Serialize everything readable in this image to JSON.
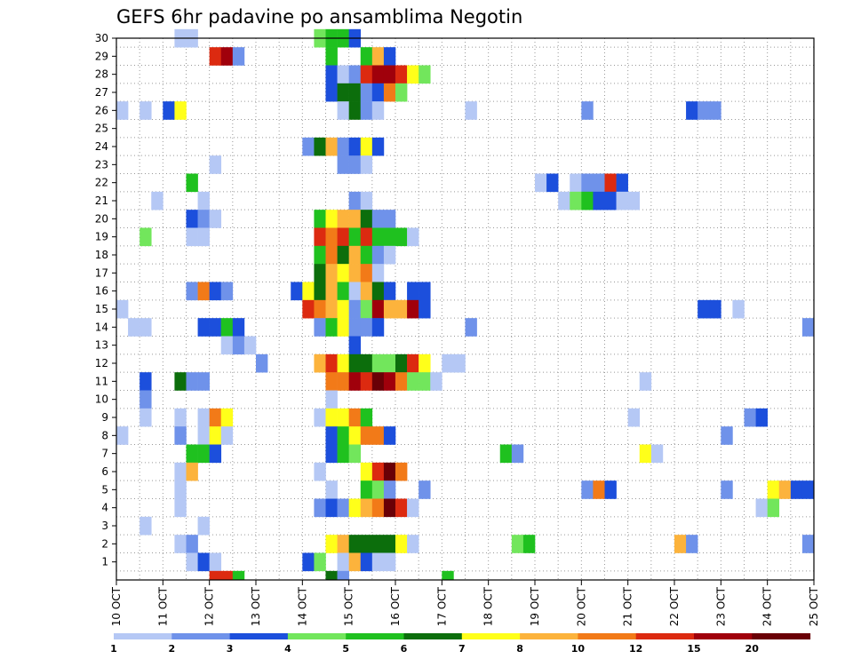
{
  "chart_data": {
    "type": "heatmap",
    "title": "GEFS 6hr padavine po ansamblima Negotin",
    "x_labels": [
      "10 OCT",
      "11 OCT",
      "12 OCT",
      "13 OCT",
      "14 OCT",
      "15 OCT",
      "16 OCT",
      "17 OCT",
      "18 OCT",
      "19 OCT",
      "20 OCT",
      "21 OCT",
      "22 OCT",
      "23 OCT",
      "24 OCT",
      "25 OCT"
    ],
    "y_labels": [
      "1",
      "2",
      "3",
      "4",
      "5",
      "6",
      "7",
      "8",
      "9",
      "10",
      "11",
      "12",
      "13",
      "14",
      "15",
      "16",
      "17",
      "18",
      "19",
      "20",
      "21",
      "22",
      "23",
      "24",
      "25",
      "26",
      "27",
      "28",
      "29",
      "30"
    ],
    "time_steps_per_day": 4,
    "members": 30,
    "colorbar": {
      "labels": [
        "1",
        "2",
        "3",
        "4",
        "5",
        "6",
        "7",
        "8",
        "10",
        "12",
        "15",
        "20"
      ],
      "colors": [
        "#b5c8f5",
        "#6f92ea",
        "#1c4fdc",
        "#72e65c",
        "#1fc11f",
        "#0c6e0c",
        "#ffff1a",
        "#fcb33c",
        "#f27a18",
        "#dc2a10",
        "#a0000b",
        "#6a0006"
      ]
    },
    "cell_levels_note": "cells: [time_step_index, member, color_level_index]",
    "cells": [
      [
        5,
        30,
        0
      ],
      [
        6,
        30,
        0
      ],
      [
        17,
        30,
        3
      ],
      [
        18,
        30,
        4
      ],
      [
        19,
        30,
        4
      ],
      [
        20,
        30,
        2
      ],
      [
        8,
        29,
        9
      ],
      [
        9,
        29,
        10
      ],
      [
        10,
        29,
        1
      ],
      [
        18,
        29,
        4
      ],
      [
        21,
        29,
        4
      ],
      [
        22,
        29,
        7
      ],
      [
        23,
        29,
        2
      ],
      [
        18,
        28,
        2
      ],
      [
        19,
        28,
        0
      ],
      [
        20,
        28,
        1
      ],
      [
        21,
        28,
        9
      ],
      [
        22,
        28,
        10
      ],
      [
        23,
        28,
        10
      ],
      [
        24,
        28,
        9
      ],
      [
        25,
        28,
        6
      ],
      [
        26,
        28,
        3
      ],
      [
        18,
        27,
        2
      ],
      [
        19,
        27,
        5
      ],
      [
        20,
        27,
        5
      ],
      [
        21,
        27,
        1
      ],
      [
        22,
        27,
        2
      ],
      [
        23,
        27,
        8
      ],
      [
        24,
        27,
        3
      ],
      [
        0,
        26,
        0
      ],
      [
        2,
        26,
        0
      ],
      [
        4,
        26,
        2
      ],
      [
        5,
        26,
        6
      ],
      [
        19,
        26,
        0
      ],
      [
        20,
        26,
        5
      ],
      [
        21,
        26,
        1
      ],
      [
        22,
        26,
        0
      ],
      [
        30,
        26,
        0
      ],
      [
        40,
        26,
        1
      ],
      [
        49,
        26,
        2
      ],
      [
        50,
        26,
        1
      ],
      [
        51,
        26,
        1
      ],
      [
        16,
        24,
        1
      ],
      [
        17,
        24,
        5
      ],
      [
        18,
        24,
        7
      ],
      [
        19,
        24,
        1
      ],
      [
        20,
        24,
        2
      ],
      [
        21,
        24,
        6
      ],
      [
        22,
        24,
        2
      ],
      [
        8,
        23,
        0
      ],
      [
        19,
        23,
        1
      ],
      [
        20,
        23,
        1
      ],
      [
        21,
        23,
        0
      ],
      [
        6,
        22,
        4
      ],
      [
        36,
        22,
        0
      ],
      [
        37,
        22,
        2
      ],
      [
        39,
        22,
        0
      ],
      [
        40,
        22,
        1
      ],
      [
        41,
        22,
        1
      ],
      [
        42,
        22,
        9
      ],
      [
        43,
        22,
        2
      ],
      [
        3,
        21,
        0
      ],
      [
        7,
        21,
        0
      ],
      [
        20,
        21,
        1
      ],
      [
        21,
        21,
        0
      ],
      [
        38,
        21,
        0
      ],
      [
        39,
        21,
        3
      ],
      [
        40,
        21,
        4
      ],
      [
        41,
        21,
        2
      ],
      [
        42,
        21,
        2
      ],
      [
        43,
        21,
        0
      ],
      [
        44,
        21,
        0
      ],
      [
        6,
        20,
        2
      ],
      [
        7,
        20,
        1
      ],
      [
        8,
        20,
        0
      ],
      [
        17,
        20,
        4
      ],
      [
        18,
        20,
        6
      ],
      [
        19,
        20,
        7
      ],
      [
        20,
        20,
        7
      ],
      [
        21,
        20,
        5
      ],
      [
        22,
        20,
        1
      ],
      [
        23,
        20,
        1
      ],
      [
        2,
        19,
        3
      ],
      [
        6,
        19,
        0
      ],
      [
        7,
        19,
        0
      ],
      [
        17,
        19,
        9
      ],
      [
        18,
        19,
        8
      ],
      [
        19,
        19,
        9
      ],
      [
        20,
        19,
        4
      ],
      [
        21,
        19,
        9
      ],
      [
        22,
        19,
        4
      ],
      [
        23,
        19,
        4
      ],
      [
        24,
        19,
        4
      ],
      [
        25,
        19,
        0
      ],
      [
        17,
        18,
        4
      ],
      [
        18,
        18,
        8
      ],
      [
        19,
        18,
        5
      ],
      [
        20,
        18,
        7
      ],
      [
        21,
        18,
        4
      ],
      [
        22,
        18,
        1
      ],
      [
        23,
        18,
        0
      ],
      [
        17,
        17,
        5
      ],
      [
        18,
        17,
        7
      ],
      [
        19,
        17,
        6
      ],
      [
        20,
        17,
        7
      ],
      [
        21,
        17,
        8
      ],
      [
        22,
        17,
        0
      ],
      [
        6,
        16,
        1
      ],
      [
        7,
        16,
        8
      ],
      [
        8,
        16,
        2
      ],
      [
        9,
        16,
        1
      ],
      [
        15,
        16,
        2
      ],
      [
        16,
        16,
        6
      ],
      [
        17,
        16,
        5
      ],
      [
        18,
        16,
        7
      ],
      [
        19,
        16,
        4
      ],
      [
        20,
        16,
        0
      ],
      [
        21,
        16,
        7
      ],
      [
        22,
        16,
        5
      ],
      [
        23,
        16,
        2
      ],
      [
        25,
        16,
        2
      ],
      [
        26,
        16,
        2
      ],
      [
        0,
        15,
        0
      ],
      [
        16,
        15,
        9
      ],
      [
        17,
        15,
        8
      ],
      [
        18,
        15,
        7
      ],
      [
        19,
        15,
        6
      ],
      [
        20,
        15,
        1
      ],
      [
        21,
        15,
        3
      ],
      [
        22,
        15,
        10
      ],
      [
        23,
        15,
        7
      ],
      [
        24,
        15,
        7
      ],
      [
        25,
        15,
        10
      ],
      [
        26,
        15,
        2
      ],
      [
        50,
        15,
        2
      ],
      [
        51,
        15,
        2
      ],
      [
        53,
        15,
        0
      ],
      [
        1,
        14,
        0
      ],
      [
        2,
        14,
        0
      ],
      [
        7,
        14,
        2
      ],
      [
        8,
        14,
        2
      ],
      [
        9,
        14,
        4
      ],
      [
        10,
        14,
        2
      ],
      [
        17,
        14,
        1
      ],
      [
        18,
        14,
        4
      ],
      [
        19,
        14,
        6
      ],
      [
        20,
        14,
        1
      ],
      [
        21,
        14,
        1
      ],
      [
        22,
        14,
        2
      ],
      [
        30,
        14,
        1
      ],
      [
        59,
        14,
        1
      ],
      [
        9,
        13,
        0
      ],
      [
        10,
        13,
        1
      ],
      [
        11,
        13,
        0
      ],
      [
        20,
        13,
        2
      ],
      [
        12,
        12,
        1
      ],
      [
        17,
        12,
        7
      ],
      [
        18,
        12,
        9
      ],
      [
        19,
        12,
        6
      ],
      [
        20,
        12,
        5
      ],
      [
        21,
        12,
        5
      ],
      [
        22,
        12,
        3
      ],
      [
        23,
        12,
        3
      ],
      [
        24,
        12,
        5
      ],
      [
        25,
        12,
        9
      ],
      [
        26,
        12,
        6
      ],
      [
        28,
        12,
        0
      ],
      [
        29,
        12,
        0
      ],
      [
        2,
        11,
        2
      ],
      [
        5,
        11,
        5
      ],
      [
        6,
        11,
        1
      ],
      [
        7,
        11,
        1
      ],
      [
        18,
        11,
        8
      ],
      [
        19,
        11,
        8
      ],
      [
        20,
        11,
        10
      ],
      [
        21,
        11,
        9
      ],
      [
        22,
        11,
        11
      ],
      [
        23,
        11,
        10
      ],
      [
        24,
        11,
        8
      ],
      [
        25,
        11,
        3
      ],
      [
        26,
        11,
        3
      ],
      [
        27,
        11,
        0
      ],
      [
        45,
        11,
        0
      ],
      [
        2,
        10,
        1
      ],
      [
        18,
        10,
        0
      ],
      [
        2,
        9,
        0
      ],
      [
        5,
        9,
        0
      ],
      [
        7,
        9,
        0
      ],
      [
        8,
        9,
        8
      ],
      [
        9,
        9,
        6
      ],
      [
        17,
        9,
        0
      ],
      [
        18,
        9,
        6
      ],
      [
        19,
        9,
        6
      ],
      [
        20,
        9,
        8
      ],
      [
        21,
        9,
        4
      ],
      [
        44,
        9,
        0
      ],
      [
        54,
        9,
        1
      ],
      [
        55,
        9,
        2
      ],
      [
        0,
        8,
        0
      ],
      [
        5,
        8,
        1
      ],
      [
        7,
        8,
        0
      ],
      [
        8,
        8,
        6
      ],
      [
        9,
        8,
        0
      ],
      [
        18,
        8,
        2
      ],
      [
        19,
        8,
        4
      ],
      [
        20,
        8,
        6
      ],
      [
        21,
        8,
        8
      ],
      [
        22,
        8,
        8
      ],
      [
        23,
        8,
        2
      ],
      [
        52,
        8,
        1
      ],
      [
        6,
        7,
        4
      ],
      [
        7,
        7,
        4
      ],
      [
        8,
        7,
        2
      ],
      [
        18,
        7,
        2
      ],
      [
        19,
        7,
        4
      ],
      [
        20,
        7,
        3
      ],
      [
        33,
        7,
        4
      ],
      [
        34,
        7,
        1
      ],
      [
        45,
        7,
        6
      ],
      [
        46,
        7,
        0
      ],
      [
        5,
        6,
        0
      ],
      [
        6,
        6,
        7
      ],
      [
        17,
        6,
        0
      ],
      [
        21,
        6,
        6
      ],
      [
        22,
        6,
        9
      ],
      [
        23,
        6,
        11
      ],
      [
        24,
        6,
        8
      ],
      [
        5,
        5,
        0
      ],
      [
        18,
        5,
        0
      ],
      [
        21,
        5,
        4
      ],
      [
        22,
        5,
        3
      ],
      [
        23,
        5,
        1
      ],
      [
        26,
        5,
        1
      ],
      [
        40,
        5,
        1
      ],
      [
        41,
        5,
        8
      ],
      [
        42,
        5,
        2
      ],
      [
        52,
        5,
        1
      ],
      [
        56,
        5,
        6
      ],
      [
        57,
        5,
        7
      ],
      [
        58,
        5,
        2
      ],
      [
        59,
        5,
        2
      ],
      [
        5,
        4,
        0
      ],
      [
        17,
        4,
        1
      ],
      [
        18,
        4,
        2
      ],
      [
        19,
        4,
        1
      ],
      [
        20,
        4,
        6
      ],
      [
        21,
        4,
        7
      ],
      [
        22,
        4,
        8
      ],
      [
        23,
        4,
        11
      ],
      [
        24,
        4,
        9
      ],
      [
        25,
        4,
        0
      ],
      [
        55,
        4,
        0
      ],
      [
        56,
        4,
        3
      ],
      [
        2,
        3,
        0
      ],
      [
        7,
        3,
        0
      ],
      [
        5,
        2,
        0
      ],
      [
        6,
        2,
        1
      ],
      [
        18,
        2,
        6
      ],
      [
        19,
        2,
        7
      ],
      [
        20,
        2,
        5
      ],
      [
        21,
        2,
        5
      ],
      [
        22,
        2,
        5
      ],
      [
        23,
        2,
        5
      ],
      [
        24,
        2,
        6
      ],
      [
        25,
        2,
        0
      ],
      [
        34,
        2,
        3
      ],
      [
        35,
        2,
        4
      ],
      [
        48,
        2,
        7
      ],
      [
        49,
        2,
        1
      ],
      [
        59,
        2,
        1
      ],
      [
        6,
        1,
        0
      ],
      [
        7,
        1,
        2
      ],
      [
        8,
        1,
        0
      ],
      [
        16,
        1,
        2
      ],
      [
        17,
        1,
        3
      ],
      [
        19,
        1,
        0
      ],
      [
        20,
        1,
        7
      ],
      [
        21,
        1,
        2
      ],
      [
        22,
        1,
        0
      ],
      [
        23,
        1,
        0
      ],
      [
        8,
        0,
        9
      ],
      [
        9,
        0,
        9
      ],
      [
        10,
        0,
        4
      ],
      [
        18,
        0,
        5
      ],
      [
        19,
        0,
        1
      ],
      [
        28,
        0,
        4
      ]
    ]
  }
}
